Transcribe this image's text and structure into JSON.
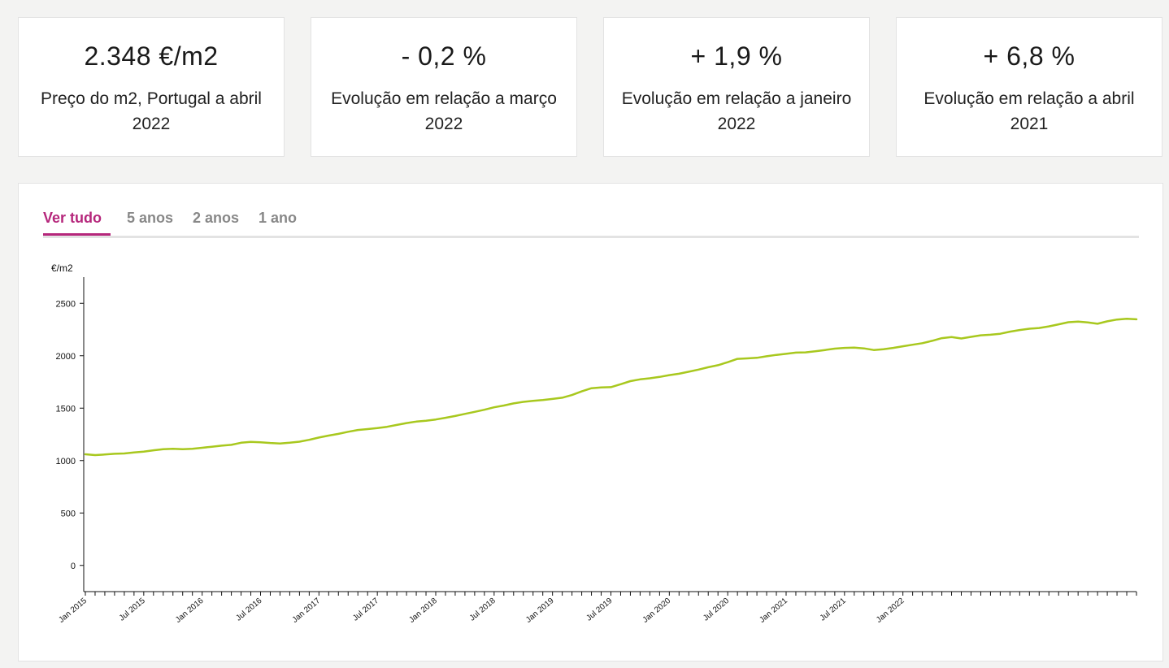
{
  "stats": [
    {
      "value": "2.348 €/m2",
      "label": "Preço do m2, Portugal a abril 2022"
    },
    {
      "value": "- 0,2 %",
      "label": "Evolução em relação a março 2022"
    },
    {
      "value": "+ 1,9 %",
      "label": "Evolução em relação a janeiro 2022"
    },
    {
      "value": "+ 6,8 %",
      "label": "Evolução em relação a abril 2021"
    }
  ],
  "tabs": [
    {
      "label": "Ver tudo",
      "active": true
    },
    {
      "label": "5 anos",
      "active": false
    },
    {
      "label": "2 anos",
      "active": false
    },
    {
      "label": "1 ano",
      "active": false
    }
  ],
  "colors": {
    "accent": "#b5267b",
    "line": "#a8c81e",
    "tab_inactive": "#888888"
  },
  "chart_data": {
    "type": "line",
    "title": "",
    "ylabel": "€/m2",
    "xlabel": "",
    "ylim": [
      -250,
      2750
    ],
    "yticks": [
      0,
      500,
      1000,
      1500,
      2000,
      2500
    ],
    "xticks": [
      "Jan 2015",
      "Jul 2015",
      "Jan 2016",
      "Jul 2016",
      "Jan 2017",
      "Jul 2017",
      "Jan 2018",
      "Jul 2018",
      "Jan 2019",
      "Jul 2019",
      "Jan 2020",
      "Jul 2020",
      "Jan 2021",
      "Jul 2021",
      "Jan 2022"
    ],
    "x_start": "Jan 2015",
    "x_end": "Apr 2022",
    "grid": false,
    "series": [
      {
        "values": [
          1060,
          1052,
          1058,
          1065,
          1068,
          1078,
          1085,
          1098,
          1108,
          1112,
          1109,
          1112,
          1122,
          1132,
          1142,
          1150,
          1170,
          1178,
          1175,
          1168,
          1163,
          1170,
          1180,
          1198,
          1220,
          1238,
          1255,
          1275,
          1292,
          1300,
          1310,
          1322,
          1340,
          1358,
          1372,
          1380,
          1392,
          1408,
          1425,
          1445,
          1465,
          1485,
          1508,
          1525,
          1545,
          1560,
          1570,
          1578,
          1588,
          1600,
          1625,
          1660,
          1690,
          1698,
          1700,
          1728,
          1758,
          1775,
          1785,
          1798,
          1815,
          1828,
          1848,
          1868,
          1890,
          1910,
          1938,
          1970,
          1975,
          1980,
          1995,
          2008,
          2018,
          2030,
          2032,
          2042,
          2055,
          2068,
          2075,
          2078,
          2070,
          2055,
          2062,
          2075,
          2090,
          2105,
          2120,
          2142,
          2168,
          2178,
          2165,
          2180,
          2195,
          2200,
          2210,
          2230,
          2245,
          2258,
          2265,
          2280,
          2300,
          2320,
          2325,
          2318,
          2305,
          2328,
          2345,
          2352,
          2348
        ]
      }
    ]
  }
}
